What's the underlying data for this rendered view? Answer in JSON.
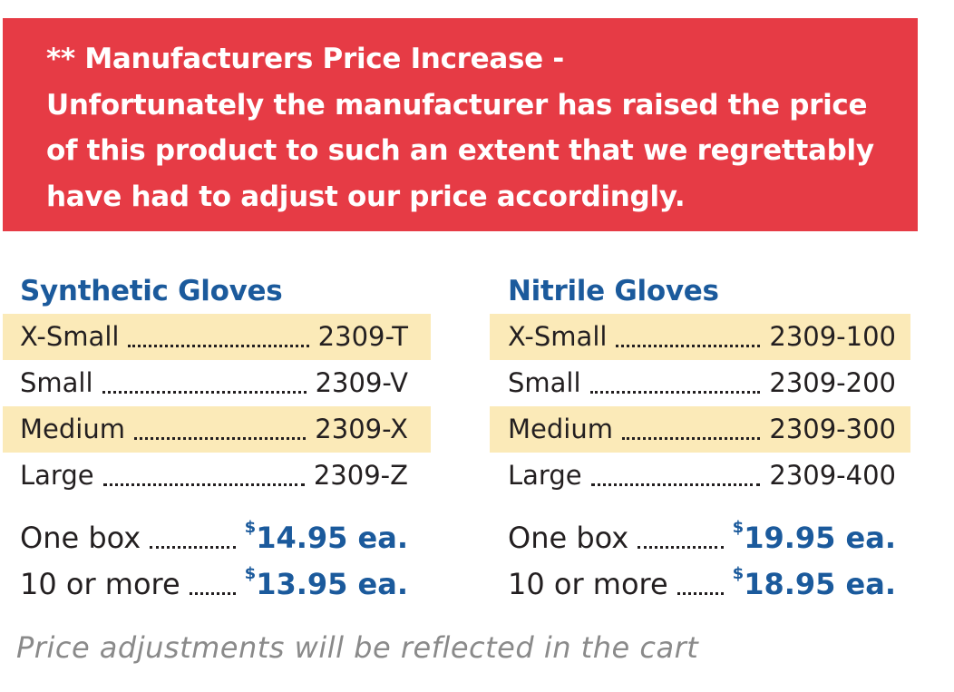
{
  "banner": {
    "lines": [
      "** Manufacturers Price Increase -",
      "Unfortunately the manufacturer has raised the price",
      "of this product to such an extent that we regrettably",
      "have had to adjust our price accordingly."
    ]
  },
  "products": [
    {
      "title": "Synthetic Gloves",
      "sizes": [
        {
          "size": "X-Small",
          "code": "2309-T"
        },
        {
          "size": "Small",
          "code": "2309-V"
        },
        {
          "size": "Medium",
          "code": "2309-X"
        },
        {
          "size": "Large",
          "code": "2309-Z"
        }
      ],
      "prices": [
        {
          "label": "One box",
          "currency": "$",
          "price": "14.95 ea."
        },
        {
          "label": "10 or more",
          "currency": "$",
          "price": "13.95 ea."
        }
      ]
    },
    {
      "title": "Nitrile Gloves",
      "sizes": [
        {
          "size": "X-Small",
          "code": "2309-100"
        },
        {
          "size": "Small",
          "code": "2309-200"
        },
        {
          "size": "Medium",
          "code": "2309-300"
        },
        {
          "size": "Large",
          "code": "2309-400"
        }
      ],
      "prices": [
        {
          "label": "One box",
          "currency": "$",
          "price": "19.95 ea."
        },
        {
          "label": "10 or more",
          "currency": "$",
          "price": "18.95 ea."
        }
      ]
    }
  ],
  "footnote": "Price adjustments will be reflected in the cart"
}
